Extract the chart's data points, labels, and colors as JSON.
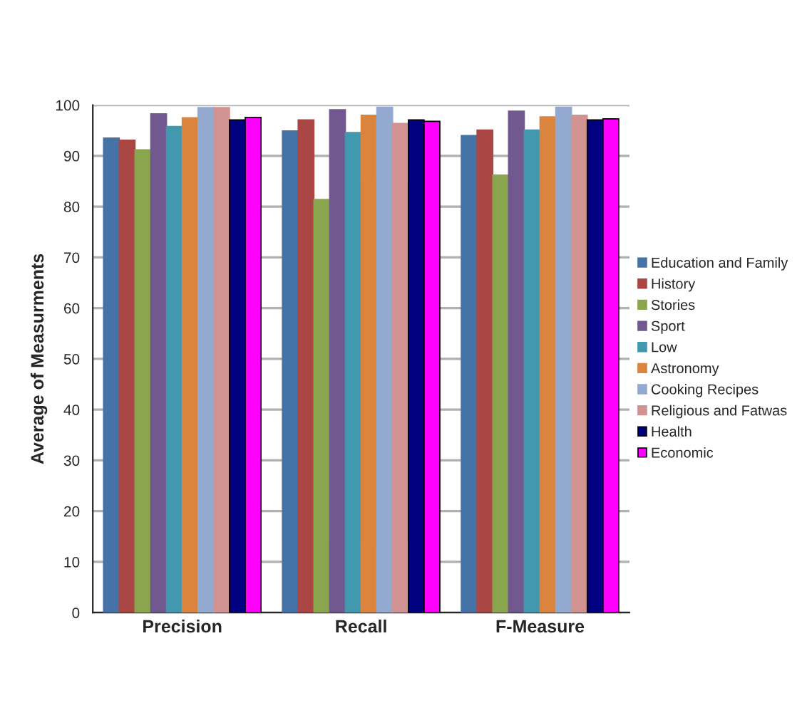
{
  "chart_data": {
    "type": "bar",
    "ylabel": "Average of Measurments",
    "categories": [
      "Precision",
      "Recall",
      "F-Measure"
    ],
    "series": [
      {
        "name": "Education and Family",
        "color": "#4572a7",
        "values": [
          93.5,
          94.9,
          94.0
        ]
      },
      {
        "name": "History",
        "color": "#aa4643",
        "values": [
          93.1,
          97.1,
          95.1
        ]
      },
      {
        "name": "Stories",
        "color": "#89a54e",
        "values": [
          91.2,
          81.4,
          86.2
        ]
      },
      {
        "name": "Sport",
        "color": "#71588f",
        "values": [
          98.3,
          99.1,
          98.8
        ]
      },
      {
        "name": "Low",
        "color": "#4198af",
        "values": [
          95.8,
          94.6,
          95.1
        ]
      },
      {
        "name": "Astronomy",
        "color": "#db843d",
        "values": [
          97.5,
          98.0,
          97.7
        ]
      },
      {
        "name": "Cooking Recipes",
        "color": "#93a9cf",
        "values": [
          99.5,
          99.6,
          99.6
        ]
      },
      {
        "name": "Religious and Fatwas",
        "color": "#d19392",
        "values": [
          99.5,
          96.4,
          98.0
        ]
      },
      {
        "name": "Health",
        "color": "#000080",
        "values": [
          97.1,
          97.1,
          97.1
        ]
      },
      {
        "name": "Economic",
        "color": "#ff00ff",
        "values": [
          97.6,
          96.8,
          97.3
        ]
      }
    ],
    "ylim": [
      0,
      100
    ],
    "yticks": [
      0,
      10,
      20,
      30,
      40,
      50,
      60,
      70,
      80,
      90,
      100
    ],
    "grid": "y",
    "legend": "right"
  }
}
